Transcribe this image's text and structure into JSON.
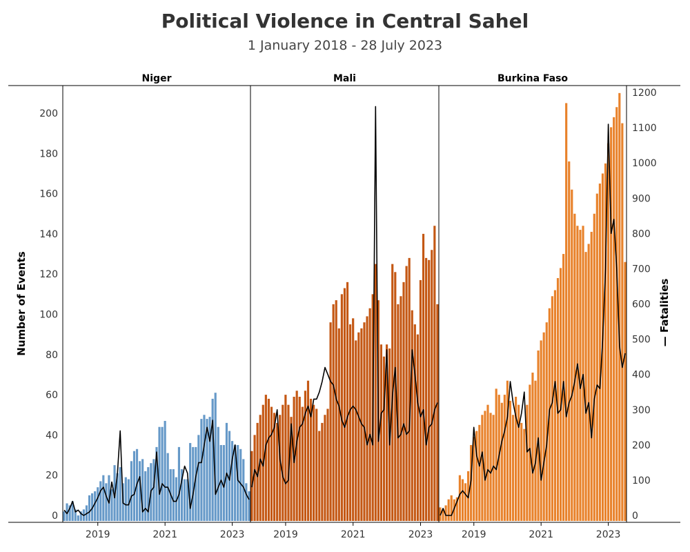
{
  "chart_data": {
    "type": "bar",
    "title": "Political Violence in Central Sahel",
    "subtitle": "1 January 2018 - 28 July 2023",
    "ylabel_left": "Number of Events",
    "ylabel_right": "Fatalities",
    "legend_symbol": "—",
    "y_left_lim": [
      0,
      210
    ],
    "y_left_ticks": [
      0,
      20,
      40,
      60,
      80,
      100,
      120,
      140,
      160,
      180,
      200
    ],
    "y_right_lim": [
      0,
      1200
    ],
    "y_right_ticks": [
      0,
      100,
      200,
      300,
      400,
      500,
      600,
      700,
      800,
      900,
      1000,
      1100,
      1200
    ],
    "x_ticks": [
      "2019",
      "2021",
      "2023"
    ],
    "x_tick_month_index": [
      12,
      36,
      60
    ],
    "bar_series_name": "Events",
    "line_series_name": "Fatalities",
    "panels": [
      {
        "name": "Niger",
        "color": "#6699c8",
        "events": [
          2,
          6,
          5,
          7,
          3,
          0,
          2,
          3,
          5,
          10,
          11,
          12,
          14,
          17,
          20,
          16,
          20,
          13,
          25,
          21,
          24,
          16,
          19,
          18,
          27,
          32,
          33,
          27,
          28,
          22,
          24,
          26,
          28,
          34,
          44,
          44,
          47,
          31,
          23,
          23,
          19,
          34,
          23,
          18,
          18,
          36,
          34,
          34,
          40,
          48,
          50,
          48,
          49,
          58,
          61,
          44,
          35,
          35,
          46,
          42,
          37,
          35,
          35,
          33,
          28,
          16,
          12
        ],
        "fatalities": [
          15,
          5,
          20,
          40,
          10,
          15,
          5,
          0,
          5,
          10,
          20,
          35,
          50,
          70,
          80,
          55,
          35,
          95,
          50,
          120,
          240,
          35,
          30,
          30,
          55,
          60,
          90,
          110,
          10,
          20,
          10,
          70,
          80,
          180,
          60,
          90,
          80,
          80,
          60,
          40,
          40,
          60,
          100,
          140,
          120,
          20,
          60,
          110,
          150,
          150,
          200,
          250,
          210,
          270,
          60,
          80,
          100,
          80,
          120,
          100,
          160,
          200,
          100,
          90,
          80,
          60,
          45
        ]
      },
      {
        "name": "Mali",
        "color": "#c45814",
        "events": [
          32,
          40,
          46,
          50,
          55,
          60,
          58,
          54,
          51,
          46,
          50,
          55,
          60,
          55,
          49,
          59,
          62,
          59,
          54,
          62,
          67,
          58,
          55,
          53,
          42,
          46,
          50,
          53,
          96,
          105,
          107,
          93,
          110,
          113,
          116,
          95,
          98,
          87,
          91,
          93,
          96,
          99,
          103,
          110,
          125,
          107,
          85,
          79,
          85,
          83,
          125,
          121,
          105,
          109,
          116,
          124,
          128,
          102,
          95,
          90,
          117,
          140,
          128,
          127,
          132,
          144,
          105
        ],
        "fatalities": [
          80,
          130,
          110,
          160,
          140,
          200,
          220,
          230,
          250,
          300,
          160,
          110,
          90,
          100,
          260,
          150,
          210,
          250,
          260,
          290,
          310,
          280,
          330,
          330,
          350,
          380,
          420,
          400,
          380,
          370,
          330,
          310,
          270,
          250,
          280,
          300,
          310,
          300,
          280,
          260,
          250,
          200,
          230,
          200,
          1160,
          210,
          290,
          300,
          470,
          200,
          340,
          420,
          220,
          230,
          260,
          230,
          240,
          470,
          400,
          320,
          280,
          300,
          200,
          250,
          260,
          300,
          320
        ],
        "events_ov": [
          44,
          47,
          51,
          54,
          55,
          57,
          60,
          58,
          55,
          53,
          52,
          50,
          48,
          44,
          42,
          40,
          40,
          43,
          48,
          50,
          54,
          60,
          62,
          63,
          35,
          40,
          44,
          50,
          110,
          114,
          108,
          80,
          90,
          108,
          113,
          100,
          102,
          95,
          92,
          95,
          97,
          90,
          100,
          96,
          125,
          108,
          80,
          72,
          84,
          80,
          125,
          129,
          104,
          110,
          107,
          130,
          135,
          101,
          95,
          94,
          118,
          132,
          123,
          120,
          127,
          146,
          103
        ],
        "fatalities_ov": [
          95,
          140,
          120,
          160,
          150,
          210,
          235,
          235,
          250,
          290,
          170,
          110,
          100,
          110,
          250,
          160,
          210,
          250,
          260,
          300,
          320,
          280,
          330,
          330,
          350,
          380,
          420,
          400,
          390,
          370,
          330,
          310,
          270,
          250,
          280,
          300,
          320,
          300,
          280,
          260,
          250,
          200,
          230,
          210,
          1160,
          200,
          290,
          300,
          470,
          210,
          340,
          420,
          230,
          240,
          260,
          230,
          240,
          470,
          400,
          320,
          280,
          300,
          210,
          250,
          260,
          300,
          320
        ]
      },
      {
        "name": "Burkina Faso",
        "color": "#e8822b",
        "events": [
          4,
          3,
          5,
          8,
          10,
          8,
          9,
          20,
          18,
          16,
          22,
          35,
          39,
          42,
          45,
          50,
          52,
          55,
          51,
          50,
          63,
          60,
          56,
          60,
          67,
          57,
          50,
          59,
          55,
          46,
          43,
          55,
          65,
          71,
          67,
          82,
          87,
          91,
          96,
          103,
          109,
          112,
          118,
          123,
          130,
          205,
          176,
          162,
          150,
          144,
          142,
          144,
          131,
          135,
          141,
          150,
          160,
          165,
          170,
          175,
          185,
          193,
          198,
          203,
          210,
          195,
          126
        ],
        "fatalities": [
          0,
          20,
          0,
          0,
          0,
          20,
          40,
          60,
          70,
          60,
          50,
          100,
          250,
          170,
          140,
          180,
          100,
          130,
          120,
          140,
          130,
          170,
          210,
          240,
          280,
          380,
          320,
          280,
          250,
          290,
          350,
          180,
          190,
          120,
          150,
          220,
          100,
          150,
          200,
          300,
          320,
          380,
          290,
          300,
          380,
          280,
          320,
          340,
          380,
          430,
          360,
          400,
          290,
          320,
          220,
          330,
          370,
          360,
          500,
          700,
          1110,
          800,
          840,
          700,
          480,
          420,
          460
        ]
      }
    ]
  }
}
